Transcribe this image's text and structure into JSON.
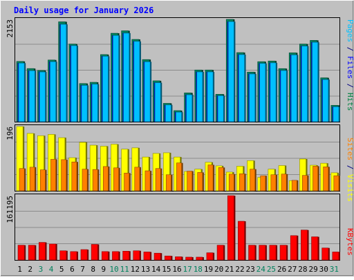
{
  "title": "Daily usage for January 2026",
  "top_scale_label": "2153",
  "middle_scale_label": "196",
  "bottom_scale_label": "161195",
  "right_labels": {
    "top": [
      {
        "text": "Pages",
        "color": "#00c0ff"
      },
      {
        "text": " / ",
        "color": "#000080"
      },
      {
        "text": "Files",
        "color": "#0000ff"
      },
      {
        "text": " / ",
        "color": "#000080"
      },
      {
        "text": "Hits",
        "color": "#008040"
      }
    ],
    "middle": [
      {
        "text": "Sites",
        "color": "#ff8000"
      },
      {
        "text": " / ",
        "color": "#000080"
      },
      {
        "text": "Visits",
        "color": "#ffff00"
      }
    ],
    "bottom": [
      {
        "text": "KBytes",
        "color": "#ff0000"
      }
    ]
  },
  "colors": {
    "background": "#c0c0c0",
    "hits": "#00805c",
    "files": "#0000ff",
    "pages": "#00c0ff",
    "visits": "#ffff00",
    "sites": "#ff8000",
    "kbytes": "#ff0000",
    "title": "#0000ff",
    "weekday_label": "#000000",
    "weekend_label": "#00805c"
  },
  "chart_data": [
    {
      "type": "bar",
      "title": "Daily usage for January 2026",
      "x": [
        "1",
        "2",
        "3",
        "4",
        "5",
        "6",
        "7",
        "8",
        "9",
        "10",
        "11",
        "12",
        "13",
        "14",
        "15",
        "16",
        "17",
        "18",
        "19",
        "20",
        "21",
        "22",
        "23",
        "24",
        "25",
        "26",
        "27",
        "28",
        "29",
        "30",
        "31"
      ],
      "weekend_days": [
        "3",
        "4",
        "10",
        "11",
        "17",
        "18",
        "24",
        "25",
        "31"
      ],
      "ylim": [
        0,
        2153
      ],
      "series": [
        {
          "name": "Hits",
          "values": [
            1268,
            1118,
            1077,
            1298,
            2102,
            1634,
            803,
            829,
            1412,
            1861,
            1913,
            1731,
            1307,
            860,
            386,
            233,
            606,
            1088,
            1088,
            577,
            2153,
            1454,
            1044,
            1263,
            1277,
            1117,
            1449,
            1634,
            1711,
            923,
            344
          ]
        },
        {
          "name": "Files",
          "values": [
            1232,
            1072,
            1046,
            1262,
            2048,
            1600,
            764,
            789,
            1376,
            1814,
            1863,
            1690,
            1260,
            820,
            352,
            200,
            566,
            1047,
            1047,
            546,
            2105,
            1411,
            1004,
            1226,
            1238,
            1076,
            1405,
            1591,
            1671,
            886,
            313
          ]
        },
        {
          "name": "Pages",
          "values": [
            1232,
            1072,
            1046,
            1262,
            2048,
            1600,
            764,
            789,
            1376,
            1814,
            1863,
            1690,
            1260,
            820,
            352,
            200,
            566,
            1047,
            1047,
            546,
            2105,
            1411,
            1004,
            1226,
            1238,
            1076,
            1405,
            1591,
            1671,
            886,
            313
          ]
        }
      ]
    },
    {
      "type": "bar",
      "x": [
        "1",
        "2",
        "3",
        "4",
        "5",
        "6",
        "7",
        "8",
        "9",
        "10",
        "11",
        "12",
        "13",
        "14",
        "15",
        "16",
        "17",
        "18",
        "19",
        "20",
        "21",
        "22",
        "23",
        "24",
        "25",
        "26",
        "27",
        "28",
        "29",
        "30",
        "31"
      ],
      "ylim": [
        0,
        196
      ],
      "series": [
        {
          "name": "Visits",
          "values": [
            196,
            175,
            168,
            172,
            162,
            101,
            148,
            139,
            136,
            142,
            127,
            131,
            103,
            114,
            116,
            103,
            59,
            66,
            87,
            76,
            57,
            75,
            92,
            41,
            66,
            77,
            31,
            97,
            78,
            84,
            55
          ]
        },
        {
          "name": "Sites",
          "values": [
            68,
            72,
            64,
            96,
            95,
            88,
            66,
            65,
            74,
            70,
            54,
            72,
            61,
            68,
            49,
            85,
            60,
            56,
            79,
            71,
            51,
            52,
            66,
            46,
            49,
            51,
            32,
            47,
            75,
            73,
            46
          ]
        }
      ]
    },
    {
      "type": "bar",
      "x": [
        "1",
        "2",
        "3",
        "4",
        "5",
        "6",
        "7",
        "8",
        "9",
        "10",
        "11",
        "12",
        "13",
        "14",
        "15",
        "16",
        "17",
        "18",
        "19",
        "20",
        "21",
        "22",
        "23",
        "24",
        "25",
        "26",
        "27",
        "28",
        "29",
        "30",
        "31"
      ],
      "ylim": [
        0,
        161195
      ],
      "series": [
        {
          "name": "KBytes",
          "values": [
            37000,
            37000,
            44000,
            40000,
            23000,
            21000,
            26000,
            39000,
            21000,
            21000,
            22000,
            23000,
            20000,
            17000,
            10000,
            8000,
            7000,
            7000,
            18000,
            37000,
            161195,
            97000,
            37000,
            37000,
            37000,
            37000,
            61000,
            75000,
            58000,
            30000,
            20000
          ]
        }
      ]
    }
  ]
}
